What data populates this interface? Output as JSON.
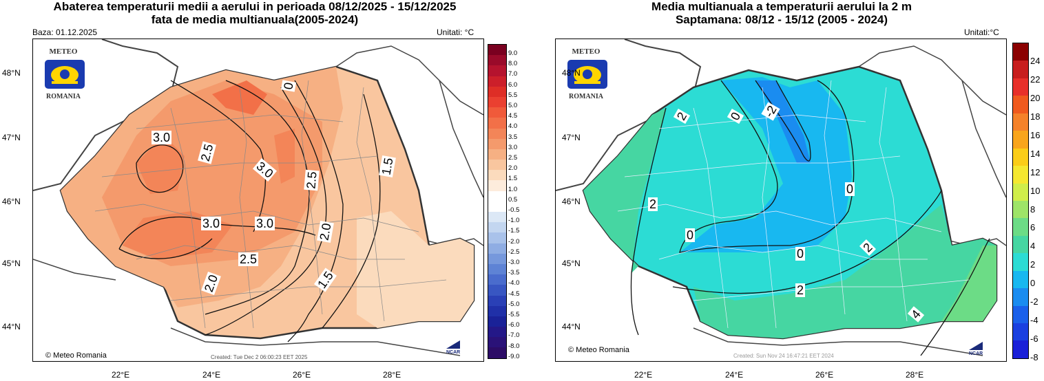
{
  "left": {
    "title_line1": "Abaterea temperaturii medii a aerului in perioada 08/12/2025 - 15/12/2025",
    "title_line2": "fata de media multianuala(2005-2024)",
    "base": "Baza: 01.12.2025",
    "units": "Unitati: °C",
    "created": "Created: Tue Dec  2 06:00:23 EET 2025",
    "credit": "Meteo Romania",
    "contour_labels": [
      "3.0",
      "2.5",
      "3.0",
      "2.5",
      "3.0",
      "3.0",
      "2.5",
      "2.0",
      "1.5",
      "2.0",
      "1.5",
      "0"
    ],
    "colorbar_labels": [
      "9.0",
      "8.0",
      "7.0",
      "6.0",
      "5.5",
      "5.0",
      "4.5",
      "4.0",
      "3.5",
      "3.0",
      "2.5",
      "2.0",
      "1.5",
      "1.0",
      "0.5",
      "-0.5",
      "-1.0",
      "-1.5",
      "-2.0",
      "-2.5",
      "-3.0",
      "-3.5",
      "-4.0",
      "-4.5",
      "-5.0",
      "-5.5",
      "-6.0",
      "-7.0",
      "-8.0",
      "-9.0"
    ],
    "colorbar_colors": [
      "#7a0020",
      "#9a0a2a",
      "#b5132e",
      "#cc1f2a",
      "#de2e26",
      "#ea4030",
      "#f05a3a",
      "#f27048",
      "#f38558",
      "#f49a6c",
      "#f6b083",
      "#f9c69f",
      "#fbdbbd",
      "#fdecdc",
      "#ffffff",
      "#ffffff",
      "#dce8f6",
      "#c3d6f0",
      "#a9c2ea",
      "#8fade3",
      "#7698dc",
      "#5e83d5",
      "#4a6ccd",
      "#3856c2",
      "#2a40b6",
      "#2030a8",
      "#1a2298",
      "#241888",
      "#2a1278",
      "#2c0c66"
    ]
  },
  "right": {
    "title_line1": "Media multianuala a temperaturii aerului la 2 m",
    "title_line2": "Saptamana: 08/12 - 15/12 (2005 - 2024)",
    "units": "Unitati:°C",
    "created": "Created: Sun Nov 24 16:47:21 EET 2024",
    "credit": "Meteo Romania",
    "contour_labels": [
      "2",
      "0",
      "-2",
      "2",
      "0",
      "0",
      "0",
      "2",
      "2",
      "4"
    ],
    "colorbar_labels": [
      "24",
      "22",
      "20",
      "18",
      "16",
      "14",
      "12",
      "10",
      "8",
      "6",
      "4",
      "2",
      "0",
      "-2",
      "-4",
      "-6",
      "-8"
    ],
    "colorbar_colors": [
      "#8b0000",
      "#c81e1e",
      "#e8302a",
      "#f05a1e",
      "#f5822a",
      "#f9a51c",
      "#fbcd18",
      "#f5e830",
      "#d0ee4a",
      "#9ee468",
      "#6cdc86",
      "#46d6a2",
      "#2cdcd4",
      "#18b8f0",
      "#1a8cf0",
      "#1a60ea",
      "#1a40e0",
      "#1a20d8"
    ]
  },
  "geo": {
    "lat_labels": [
      "48°N",
      "47°N",
      "46°N",
      "45°N",
      "44°N"
    ],
    "lon_labels": [
      "22°E",
      "24°E",
      "26°E",
      "28°E"
    ]
  },
  "logo": {
    "top": "METEO",
    "bottom": "ROMANIA"
  },
  "ncar": "NCAR"
}
